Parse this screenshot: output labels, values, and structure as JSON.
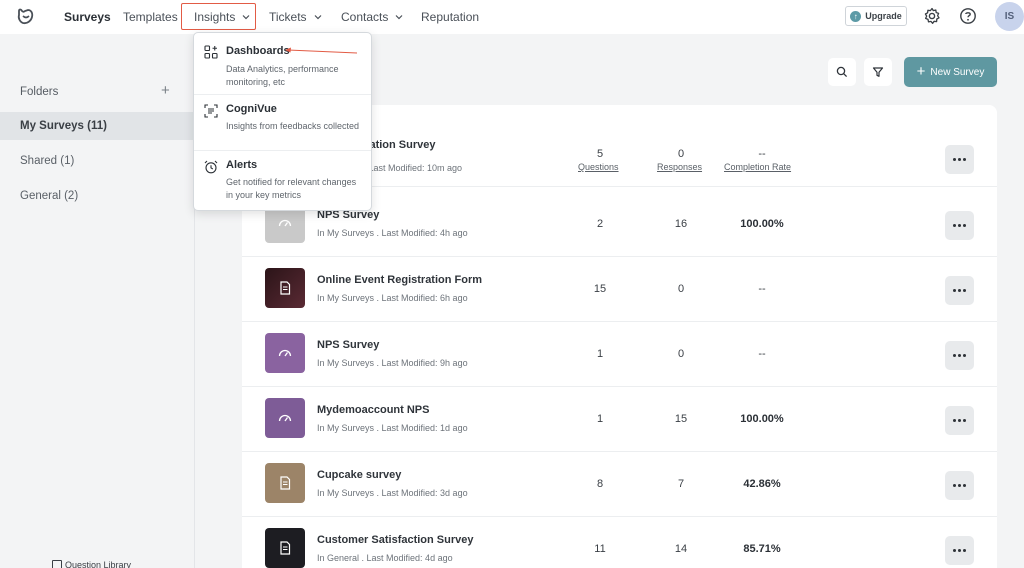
{
  "nav": {
    "surveys": "Surveys",
    "templates": "Templates",
    "insights": "Insights",
    "tickets": "Tickets",
    "contacts": "Contacts",
    "reputation": "Reputation",
    "upgrade": "Upgrade",
    "avatar_initials": "IS"
  },
  "sidebar": {
    "folders_title": "Folders",
    "folders": [
      {
        "label": "My Surveys (11)"
      },
      {
        "label": "Shared (1)"
      },
      {
        "label": "General (2)"
      }
    ],
    "question_library": "Question Library"
  },
  "actions": {
    "new_survey": "New Survey"
  },
  "dropdown": {
    "items": [
      {
        "title": "Dashboards",
        "desc": "Data Analytics, performance monitoring, etc"
      },
      {
        "title": "CogniVue",
        "desc": "Insights from feedbacks collected"
      },
      {
        "title": "Alerts",
        "desc": "Get notified for relevant changes in your key metrics"
      }
    ]
  },
  "list": {
    "labels": {
      "questions": "Questions",
      "responses": "Responses",
      "completion": "Completion Rate"
    },
    "rows": [
      {
        "name": "...ration Survey",
        "meta": "...s . Last Modified: 10m ago",
        "questions": "5",
        "responses": "0",
        "completion": "--",
        "thumb_color": "#ffffff"
      },
      {
        "name": "NPS Survey",
        "meta": "In My Surveys . Last Modified: 4h ago",
        "questions": "2",
        "responses": "16",
        "completion": "100.00%",
        "thumb_color": "#c9c9c9"
      },
      {
        "name": "Online Event Registration Form",
        "meta": "In My Surveys . Last Modified: 6h ago",
        "questions": "15",
        "responses": "0",
        "completion": "--",
        "thumb_color": "#3a1c22"
      },
      {
        "name": "NPS Survey",
        "meta": "In My Surveys . Last Modified: 9h ago",
        "questions": "1",
        "responses": "0",
        "completion": "--",
        "thumb_color": "#8a63a0"
      },
      {
        "name": "Mydemoaccount NPS",
        "meta": "In My Surveys . Last Modified: 1d ago",
        "questions": "1",
        "responses": "15",
        "completion": "100.00%",
        "thumb_color": "#7e5c97"
      },
      {
        "name": "Cupcake survey",
        "meta": "In My Surveys . Last Modified: 3d ago",
        "questions": "8",
        "responses": "7",
        "completion": "42.86%",
        "thumb_color": "#9c8468"
      },
      {
        "name": "Customer Satisfaction Survey",
        "meta": "In General . Last Modified: 4d ago",
        "questions": "11",
        "responses": "14",
        "completion": "85.71%",
        "thumb_color": "#1d1d22"
      }
    ]
  },
  "colors": {
    "accent": "#5f98a1",
    "highlight": "#e25b45"
  }
}
